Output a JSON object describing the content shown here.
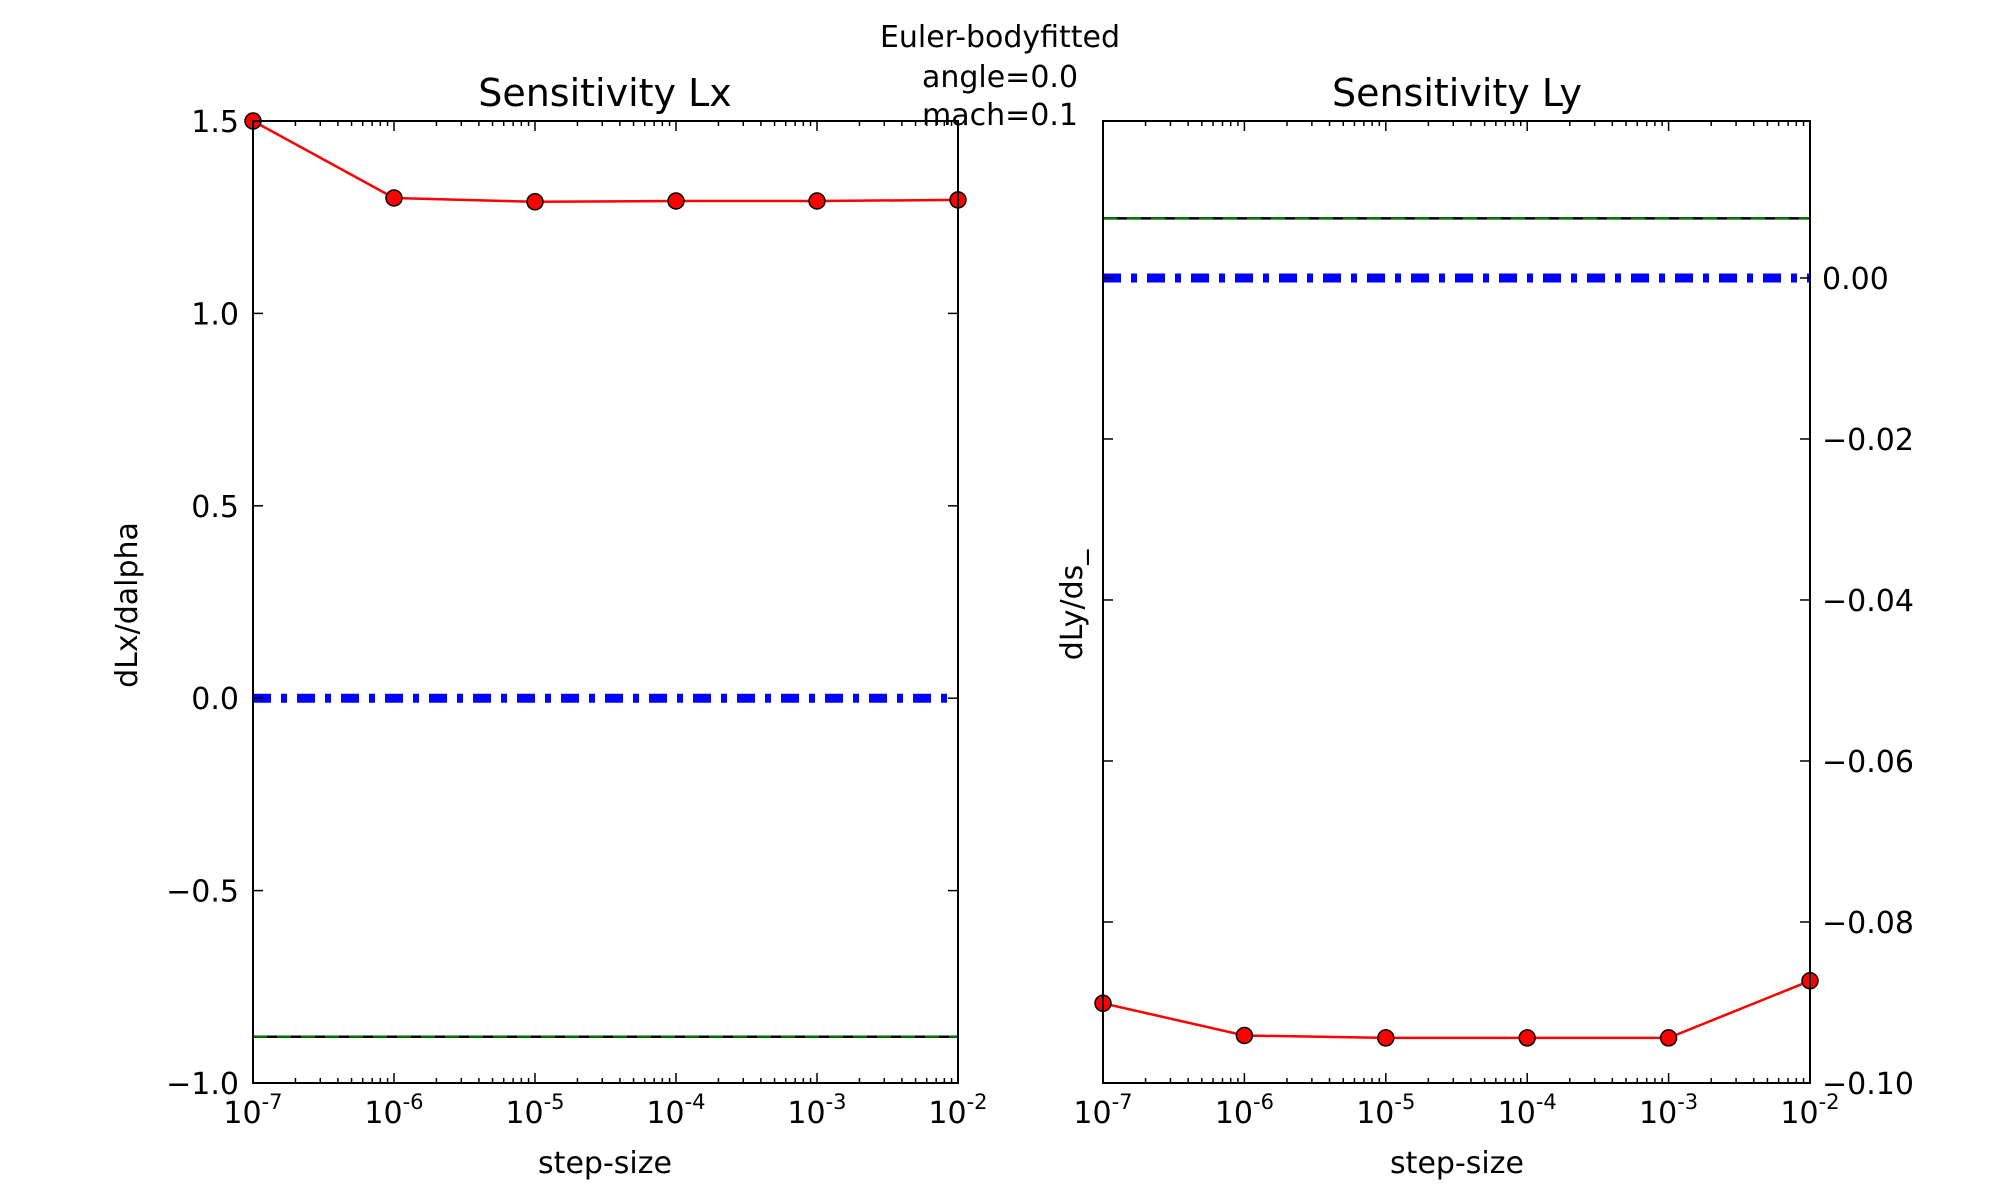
{
  "figure": {
    "suptitle_lines": [
      "Euler-bodyfitted",
      "angle=0.0",
      "mach=0.1"
    ]
  },
  "chart_data": [
    {
      "type": "line",
      "title": "Sensitivity Lx",
      "xlabel": "step-size",
      "ylabel": "dLx/dalpha",
      "xscale": "log",
      "xlim": [
        1e-07,
        0.01
      ],
      "ylim": [
        -1.0,
        1.5
      ],
      "y_axis_side": "left",
      "x_tick_exponents": [
        "-7",
        "-6",
        "-5",
        "-4",
        "-3",
        "-2"
      ],
      "y_ticks": [
        "1.5",
        "1.0",
        "0.5",
        "0.0",
        "−0.5",
        "−1.0"
      ],
      "y_tick_values": [
        1.5,
        1.0,
        0.5,
        0.0,
        -0.5,
        -1.0
      ],
      "grid": false,
      "series": [
        {
          "style": "solid-line-with-circle-markers",
          "color": "#ff0000",
          "marker_color": "#ff0000",
          "x": [
            1e-07,
            1e-06,
            1e-05,
            0.0001,
            0.001,
            0.01
          ],
          "y": [
            1.5,
            1.3,
            1.29,
            1.292,
            1.292,
            1.295
          ]
        },
        {
          "style": "dash-dot-thick",
          "color": "#0000ff",
          "x": [
            1e-07,
            0.01
          ],
          "y": [
            0.0,
            0.0
          ]
        },
        {
          "style": "solid-with-green-dash",
          "color": "#000000",
          "overlay_color": "#008000",
          "x": [
            1e-07,
            0.01
          ],
          "y": [
            -0.88,
            -0.88
          ]
        }
      ]
    },
    {
      "type": "line",
      "title": "Sensitivity Ly",
      "xlabel": "step-size",
      "ylabel": "dLy/ds_",
      "xscale": "log",
      "xlim": [
        1e-07,
        0.01
      ],
      "ylim": [
        -0.1,
        0.0195
      ],
      "y_axis_side": "right",
      "x_tick_exponents": [
        "-7",
        "-6",
        "-5",
        "-4",
        "-3",
        "-2"
      ],
      "y_ticks": [
        "0.00",
        "−0.02",
        "−0.04",
        "−0.06",
        "−0.08",
        "−0.10"
      ],
      "y_tick_values": [
        0.0,
        -0.02,
        -0.04,
        -0.06,
        -0.08,
        -0.1
      ],
      "grid": false,
      "series": [
        {
          "style": "solid-line-with-circle-markers",
          "color": "#ff0000",
          "marker_color": "#ff0000",
          "x": [
            1e-07,
            1e-06,
            1e-05,
            0.0001,
            0.001,
            0.01
          ],
          "y": [
            -0.0901,
            -0.0941,
            -0.0944,
            -0.0944,
            -0.0944,
            -0.0873
          ]
        },
        {
          "style": "dash-dot-thick",
          "color": "#0000ff",
          "x": [
            1e-07,
            0.01
          ],
          "y": [
            0.0,
            0.0
          ]
        },
        {
          "style": "solid-with-green-dash",
          "color": "#000000",
          "overlay_color": "#008000",
          "x": [
            1e-07,
            0.01
          ],
          "y": [
            0.0074,
            0.0074
          ]
        }
      ]
    }
  ]
}
